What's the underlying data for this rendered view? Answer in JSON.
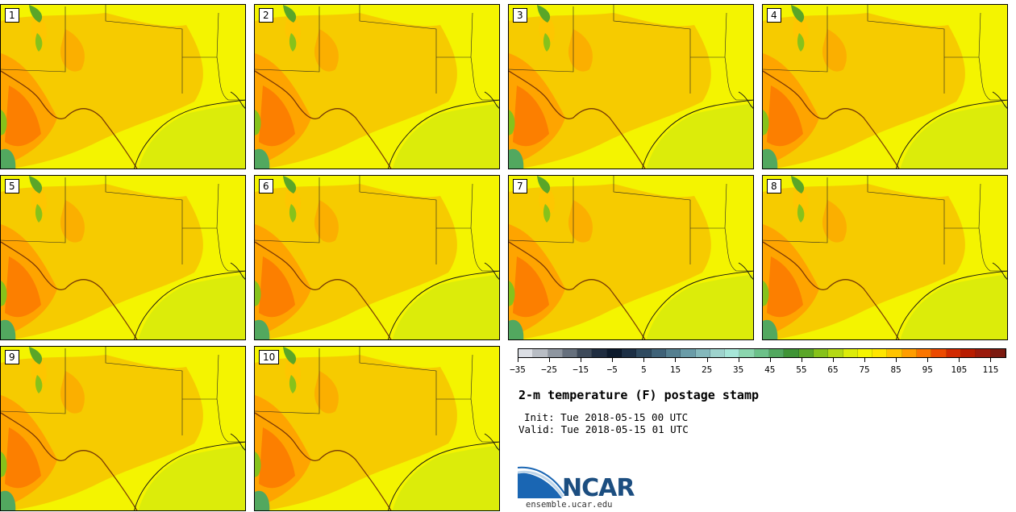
{
  "title": "2-m temperature (F) postage stamp",
  "init": "Init: Tue 2018-05-15 00 UTC",
  "valid": "Valid: Tue 2018-05-15 01 UTC",
  "stamps": [
    {
      "label": "1"
    },
    {
      "label": "2"
    },
    {
      "label": "3"
    },
    {
      "label": "4"
    },
    {
      "label": "5"
    },
    {
      "label": "6"
    },
    {
      "label": "7"
    },
    {
      "label": "8"
    },
    {
      "label": "9"
    },
    {
      "label": "10"
    }
  ],
  "colorbar": {
    "min": -35,
    "max": 120,
    "step": 5,
    "colors": [
      "#dcdfe5",
      "#b8bdc4",
      "#8e96a0",
      "#66707d",
      "#3e4a5a",
      "#1f2d40",
      "#0c1a2c",
      "#1c2f45",
      "#2f4a60",
      "#3f6278",
      "#547f90",
      "#6a9ca8",
      "#84b8bc",
      "#9ed3cd",
      "#a6e6d8",
      "#8bd6ae",
      "#6cc189",
      "#52a85f",
      "#3f9436",
      "#5aa628",
      "#86c21b",
      "#b4d914",
      "#dcec0a",
      "#f4f400",
      "#ffe600",
      "#ffc400",
      "#ff9d00",
      "#fb7500",
      "#ec4a00",
      "#d22900",
      "#b81c00",
      "#9b1a0c",
      "#7c1a10"
    ],
    "ticks": [
      "−35",
      "−25",
      "−15",
      "−5",
      "5",
      "15",
      "25",
      "35",
      "45",
      "55",
      "65",
      "75",
      "85",
      "95",
      "105",
      "115"
    ],
    "tick_values": [
      -35,
      -25,
      -15,
      -5,
      5,
      15,
      25,
      35,
      45,
      55,
      65,
      75,
      85,
      95,
      105,
      115
    ]
  },
  "logo": {
    "text": "NCAR",
    "url": "ensemble.ucar.edu"
  }
}
